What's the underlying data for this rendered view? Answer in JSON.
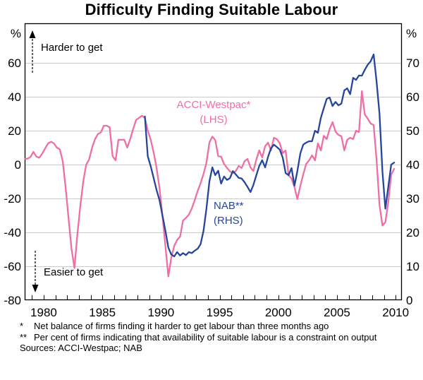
{
  "title": "Difficulty Finding Suitable Labour",
  "footnotes": [
    {
      "marker": "*",
      "text": "Net balance of firms finding it harder to get labour than three months ago"
    },
    {
      "marker": "**",
      "text": "Per cent of firms indicating that availability of suitable labour is a constraint on output"
    }
  ],
  "sources": "Sources: ACCI-Westpac; NAB",
  "colors": {
    "acci_pink": "#ee6fa4",
    "nab_blue": "#26459c",
    "grid": "#cccccc",
    "axis": "#000000"
  },
  "chart_data": {
    "type": "line",
    "title": "Difficulty Finding Suitable Labour",
    "grid": "horizontal",
    "x_axis": {
      "range": [
        1978.38,
        2010.53
      ],
      "minor_tick_interval_years": 1,
      "labeled_ticks": [
        1980,
        1985,
        1990,
        1995,
        2000,
        2005,
        2010
      ]
    },
    "left_axis": {
      "unit": "%",
      "ticks": [
        60,
        40,
        20,
        0,
        -20,
        -40,
        -60,
        -80
      ],
      "range_at_plot": [
        -80,
        83.3
      ]
    },
    "right_axis": {
      "unit": "%",
      "ticks": [
        70,
        60,
        50,
        40,
        30,
        20,
        10,
        0
      ],
      "range_at_plot": [
        0,
        81.7
      ]
    },
    "annotations": [
      {
        "text": "Harder to get",
        "arrow": "up"
      },
      {
        "text": "Easier to get",
        "arrow": "down"
      }
    ],
    "series": [
      {
        "name": "ACCI-Westpac",
        "label_lines": [
          "ACCI-Westpac*",
          "(LHS)"
        ],
        "axis": "left",
        "color": "#ee6fa4",
        "points": [
          [
            1978.42,
            3.3
          ],
          [
            1978.625,
            3.5
          ],
          [
            1978.875,
            4.5
          ],
          [
            1979.125,
            7.5
          ],
          [
            1979.375,
            4.7
          ],
          [
            1979.625,
            4.0
          ],
          [
            1979.875,
            6.5
          ],
          [
            1980.125,
            9.5
          ],
          [
            1980.375,
            12.5
          ],
          [
            1980.625,
            13.5
          ],
          [
            1980.875,
            12.5
          ],
          [
            1981.125,
            10.0
          ],
          [
            1981.375,
            9.0
          ],
          [
            1981.625,
            2.0
          ],
          [
            1981.875,
            -14
          ],
          [
            1982.125,
            -32
          ],
          [
            1982.375,
            -50
          ],
          [
            1982.625,
            -61
          ],
          [
            1982.875,
            -41
          ],
          [
            1983.125,
            -24
          ],
          [
            1983.375,
            -10
          ],
          [
            1983.625,
            0
          ],
          [
            1983.875,
            3
          ],
          [
            1984.125,
            10
          ],
          [
            1984.375,
            15
          ],
          [
            1984.625,
            18
          ],
          [
            1984.875,
            19
          ],
          [
            1985.125,
            22.9
          ],
          [
            1985.375,
            22.9
          ],
          [
            1985.625,
            22
          ],
          [
            1985.875,
            5
          ],
          [
            1986.125,
            2.5
          ],
          [
            1986.375,
            14.6
          ],
          [
            1986.625,
            14.6
          ],
          [
            1986.875,
            14.6
          ],
          [
            1987.125,
            10
          ],
          [
            1987.375,
            15
          ],
          [
            1987.625,
            20.8
          ],
          [
            1987.875,
            26.3
          ],
          [
            1988.125,
            27.5
          ],
          [
            1988.375,
            28.8
          ],
          [
            1988.625,
            27.5
          ],
          [
            1988.875,
            20
          ],
          [
            1989.125,
            14.6
          ],
          [
            1989.375,
            7
          ],
          [
            1989.625,
            -2
          ],
          [
            1989.875,
            -14
          ],
          [
            1990.125,
            -30
          ],
          [
            1990.375,
            -48
          ],
          [
            1990.625,
            -66
          ],
          [
            1990.875,
            -55
          ],
          [
            1991.125,
            -48
          ],
          [
            1991.375,
            -44.5
          ],
          [
            1991.625,
            -42.5
          ],
          [
            1991.875,
            -33
          ],
          [
            1992.125,
            -31.5
          ],
          [
            1992.375,
            -29.5
          ],
          [
            1992.625,
            -26
          ],
          [
            1992.875,
            -21
          ],
          [
            1993.125,
            -15.5
          ],
          [
            1993.375,
            -11
          ],
          [
            1993.625,
            -5.5
          ],
          [
            1993.875,
            1
          ],
          [
            1994.125,
            13
          ],
          [
            1994.375,
            16.5
          ],
          [
            1994.625,
            14.5
          ],
          [
            1994.875,
            5
          ],
          [
            1995.125,
            4.6
          ],
          [
            1995.375,
            0.4
          ],
          [
            1995.625,
            -2
          ],
          [
            1995.875,
            -4
          ],
          [
            1996.125,
            -5
          ],
          [
            1996.375,
            -3.8
          ],
          [
            1996.625,
            -0.8
          ],
          [
            1996.875,
            -2
          ],
          [
            1997.125,
            2
          ],
          [
            1997.375,
            3.3
          ],
          [
            1997.625,
            -1.7
          ],
          [
            1997.875,
            -3.8
          ],
          [
            1998.125,
            3
          ],
          [
            1998.375,
            8.3
          ],
          [
            1998.625,
            4.2
          ],
          [
            1998.875,
            10.8
          ],
          [
            1999.125,
            12.9
          ],
          [
            1999.375,
            8.3
          ],
          [
            1999.625,
            15.8
          ],
          [
            1999.875,
            15
          ],
          [
            2000.125,
            12.5
          ],
          [
            2000.375,
            6.7
          ],
          [
            2000.625,
            8.3
          ],
          [
            2000.875,
            -6.3
          ],
          [
            2001.125,
            -8.3
          ],
          [
            2001.375,
            -13.3
          ],
          [
            2001.625,
            -20.4
          ],
          [
            2001.875,
            -12.5
          ],
          [
            2002.125,
            -5.8
          ],
          [
            2002.375,
            0.4
          ],
          [
            2002.625,
            2.5
          ],
          [
            2002.875,
            5.4
          ],
          [
            2003.125,
            2.5
          ],
          [
            2003.375,
            12.5
          ],
          [
            2003.625,
            8.3
          ],
          [
            2003.875,
            17
          ],
          [
            2004.125,
            15
          ],
          [
            2004.375,
            21
          ],
          [
            2004.625,
            25
          ],
          [
            2004.875,
            19.5
          ],
          [
            2005.125,
            17.5
          ],
          [
            2005.375,
            16.7
          ],
          [
            2005.625,
            8.3
          ],
          [
            2005.875,
            14.6
          ],
          [
            2006.125,
            15.8
          ],
          [
            2006.375,
            15
          ],
          [
            2006.625,
            20
          ],
          [
            2006.875,
            19.2
          ],
          [
            2007.125,
            43.3
          ],
          [
            2007.375,
            29.5
          ],
          [
            2007.625,
            27
          ],
          [
            2007.875,
            24.2
          ],
          [
            2008.125,
            23.3
          ],
          [
            2008.375,
            3
          ],
          [
            2008.625,
            -24
          ],
          [
            2008.875,
            -36
          ],
          [
            2009.125,
            -34
          ],
          [
            2009.375,
            -22
          ],
          [
            2009.625,
            -6
          ],
          [
            2009.875,
            -2.5
          ]
        ]
      },
      {
        "name": "NAB",
        "label_lines": [
          "NAB**",
          "(RHS)"
        ],
        "axis": "right",
        "color": "#26459c",
        "points": [
          [
            1988.625,
            54.2
          ],
          [
            1988.875,
            42.5
          ],
          [
            1989.125,
            39.5
          ],
          [
            1989.375,
            36
          ],
          [
            1989.625,
            32.5
          ],
          [
            1989.875,
            29.5
          ],
          [
            1990.125,
            25
          ],
          [
            1990.375,
            20.5
          ],
          [
            1990.625,
            15.5
          ],
          [
            1990.875,
            13.5
          ],
          [
            1991.125,
            12.9
          ],
          [
            1991.375,
            14.2
          ],
          [
            1991.625,
            13.2
          ],
          [
            1991.875,
            13.9
          ],
          [
            1992.125,
            13.3
          ],
          [
            1992.375,
            14.2
          ],
          [
            1992.625,
            13.9
          ],
          [
            1992.875,
            14.6
          ],
          [
            1993.125,
            15.2
          ],
          [
            1993.375,
            16.5
          ],
          [
            1993.625,
            20.5
          ],
          [
            1993.875,
            27
          ],
          [
            1994.125,
            35
          ],
          [
            1994.375,
            39.2
          ],
          [
            1994.625,
            36.9
          ],
          [
            1994.875,
            38.2
          ],
          [
            1995.125,
            34.4
          ],
          [
            1995.375,
            36.5
          ],
          [
            1995.625,
            35.5
          ],
          [
            1995.875,
            36
          ],
          [
            1996.125,
            38.1
          ],
          [
            1996.375,
            37.1
          ],
          [
            1996.625,
            36.1
          ],
          [
            1996.875,
            35.9
          ],
          [
            1997.125,
            34.8
          ],
          [
            1997.375,
            33.4
          ],
          [
            1997.625,
            31.9
          ],
          [
            1997.875,
            34
          ],
          [
            1998.125,
            36.9
          ],
          [
            1998.375,
            39.6
          ],
          [
            1998.625,
            41.3
          ],
          [
            1998.875,
            39.2
          ],
          [
            1999.125,
            42.3
          ],
          [
            1999.375,
            44.8
          ],
          [
            1999.625,
            45.9
          ],
          [
            1999.875,
            45.2
          ],
          [
            2000.125,
            44.4
          ],
          [
            2000.375,
            42.1
          ],
          [
            2000.625,
            37.5
          ],
          [
            2000.875,
            36.9
          ],
          [
            2001.125,
            39
          ],
          [
            2001.375,
            33.8
          ],
          [
            2001.625,
            38.1
          ],
          [
            2001.875,
            43.3
          ],
          [
            2002.125,
            45.9
          ],
          [
            2002.375,
            46.5
          ],
          [
            2002.625,
            46.9
          ],
          [
            2002.875,
            46.9
          ],
          [
            2003.125,
            50
          ],
          [
            2003.375,
            49.4
          ],
          [
            2003.625,
            53.8
          ],
          [
            2003.875,
            56.7
          ],
          [
            2004.125,
            59.4
          ],
          [
            2004.375,
            59.8
          ],
          [
            2004.625,
            57.3
          ],
          [
            2004.875,
            58.5
          ],
          [
            2005.125,
            57.5
          ],
          [
            2005.375,
            58
          ],
          [
            2005.625,
            61.9
          ],
          [
            2005.875,
            62.5
          ],
          [
            2006.125,
            60.8
          ],
          [
            2006.375,
            65.6
          ],
          [
            2006.625,
            65
          ],
          [
            2006.875,
            66.3
          ],
          [
            2007.125,
            66.25
          ],
          [
            2007.375,
            68
          ],
          [
            2007.625,
            69.5
          ],
          [
            2007.875,
            70.5
          ],
          [
            2008.125,
            72.5
          ],
          [
            2008.375,
            64.6
          ],
          [
            2008.625,
            55
          ],
          [
            2008.875,
            37.9
          ],
          [
            2009.125,
            27
          ],
          [
            2009.375,
            33.5
          ],
          [
            2009.625,
            40
          ],
          [
            2009.875,
            40.6
          ]
        ]
      }
    ]
  }
}
